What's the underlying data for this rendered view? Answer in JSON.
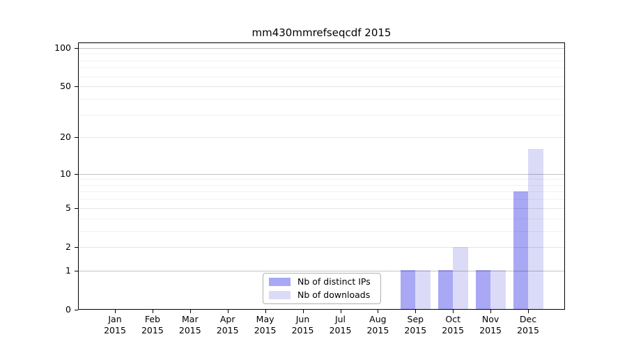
{
  "chart_data": {
    "type": "bar",
    "title": "mm430mmrefseqcdf 2015",
    "x_year": "2015",
    "x_categories": [
      "Jan",
      "Feb",
      "Mar",
      "Apr",
      "May",
      "Jun",
      "Jul",
      "Aug",
      "Sep",
      "Oct",
      "Nov",
      "Dec"
    ],
    "series": [
      {
        "name": "Nb of distinct IPs",
        "color": "#a8a8f4",
        "values": [
          0,
          0,
          0,
          0,
          0,
          0,
          0,
          0,
          1,
          1,
          1,
          7
        ]
      },
      {
        "name": "Nb of downloads",
        "color": "#dbdbf8",
        "values": [
          0,
          0,
          0,
          0,
          0,
          0,
          0,
          0,
          1,
          2,
          1,
          16
        ]
      }
    ],
    "y_scale": "log1p",
    "ylim": [
      0,
      110
    ],
    "y_ticks_labeled": [
      0,
      1,
      2,
      5,
      10,
      20,
      50,
      100
    ],
    "y_gridlines_major": [
      1,
      10,
      100
    ],
    "y_gridlines_mid": [
      2,
      5,
      20,
      50
    ],
    "y_gridlines_minor": [
      3,
      4,
      6,
      7,
      8,
      9,
      30,
      40,
      60,
      70,
      80,
      90
    ],
    "grid": true,
    "legend_position": "bottom-center",
    "colors": {
      "grid_major": "rgba(0,0,0,0.24)",
      "grid_mid": "rgba(0,0,0,0.10)",
      "grid_minor": "rgba(0,0,0,0.05)",
      "spine": "#000000",
      "background": "#ffffff"
    }
  }
}
